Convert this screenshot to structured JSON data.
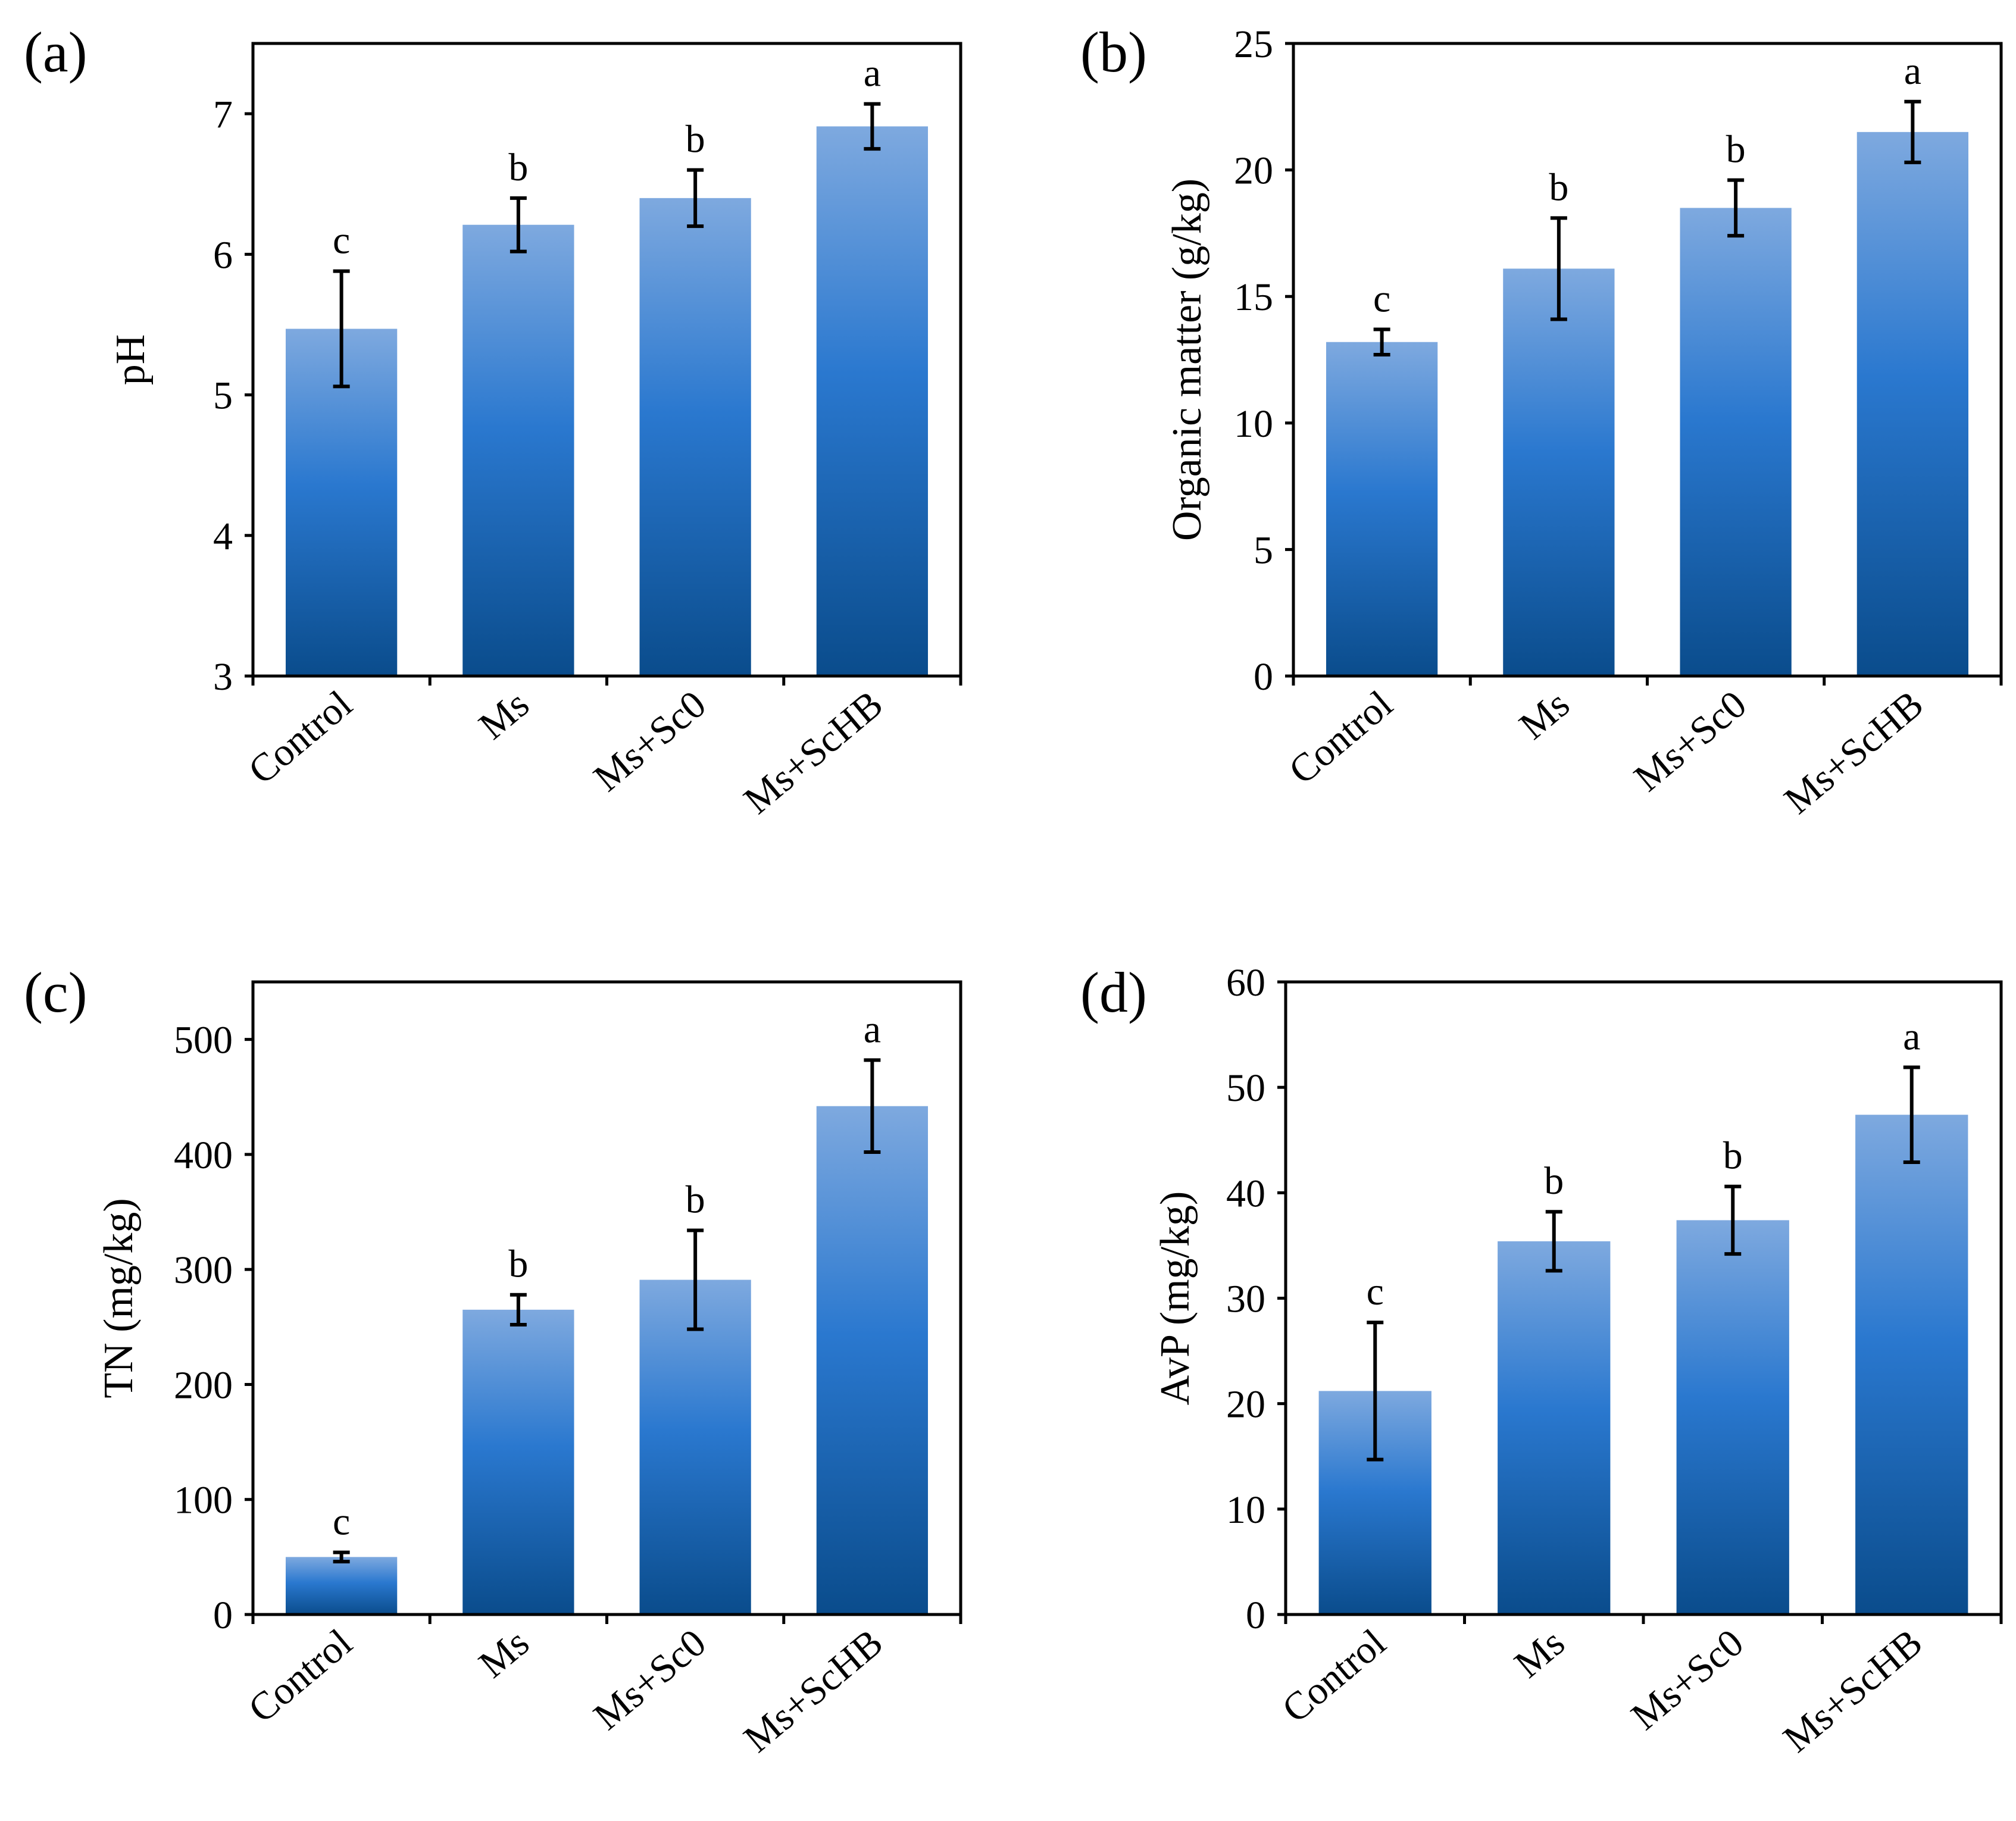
{
  "chart_data": [
    {
      "type": "bar",
      "panel": "(a)",
      "categories": [
        "Control",
        "Ms",
        "Ms+Sc0",
        "Ms+ScHB"
      ],
      "values": [
        5.47,
        6.21,
        6.4,
        6.91
      ],
      "errors": [
        0.41,
        0.19,
        0.2,
        0.16
      ],
      "significance": [
        "c",
        "b",
        "b",
        "a"
      ],
      "ylabel": "pH",
      "ylim": [
        3,
        7.5
      ],
      "yticks": [
        "3",
        "4",
        "5",
        "6",
        "7"
      ],
      "ytick_values": [
        3,
        4,
        5,
        6,
        7
      ],
      "grid": false,
      "bar_color": "#2b7bd0"
    },
    {
      "type": "bar",
      "panel": "(b)",
      "categories": [
        "Control",
        "Ms",
        "Ms+Sc0",
        "Ms+ScHB"
      ],
      "values": [
        13.2,
        16.1,
        18.5,
        21.5
      ],
      "errors": [
        0.5,
        2.0,
        1.1,
        1.2
      ],
      "significance": [
        "c",
        "b",
        "b",
        "a"
      ],
      "ylabel": "Organic matter (g/kg)",
      "ylim": [
        0,
        25
      ],
      "yticks": [
        "0",
        "5",
        "10",
        "15",
        "20",
        "25"
      ],
      "ytick_values": [
        0,
        5,
        10,
        15,
        20,
        25
      ],
      "grid": false,
      "bar_color": "#2b7bd0"
    },
    {
      "type": "bar",
      "panel": "(c)",
      "categories": [
        "Control",
        "Ms",
        "Ms+Sc0",
        "Ms+ScHB"
      ],
      "values": [
        50,
        265,
        291,
        442
      ],
      "errors": [
        4,
        13,
        43,
        40
      ],
      "significance": [
        "c",
        "b",
        "b",
        "a"
      ],
      "ylabel": "TN (mg/kg)",
      "ylim": [
        0,
        550
      ],
      "yticks": [
        "0",
        "100",
        "200",
        "300",
        "400",
        "500"
      ],
      "ytick_values": [
        0,
        100,
        200,
        300,
        400,
        500
      ],
      "grid": false,
      "bar_color": "#2b7bd0"
    },
    {
      "type": "bar",
      "panel": "(d)",
      "categories": [
        "Control",
        "Ms",
        "Ms+Sc0",
        "Ms+ScHB"
      ],
      "values": [
        21.2,
        35.4,
        37.4,
        47.4
      ],
      "errors": [
        6.5,
        2.8,
        3.2,
        4.5
      ],
      "significance": [
        "c",
        "b",
        "b",
        "a"
      ],
      "ylabel": "AvP (mg/kg)",
      "ylim": [
        0,
        60
      ],
      "yticks": [
        "0",
        "10",
        "20",
        "30",
        "40",
        "50",
        "60"
      ],
      "ytick_values": [
        0,
        10,
        20,
        30,
        40,
        50,
        60
      ],
      "grid": false,
      "bar_color": "#2b7bd0"
    }
  ]
}
